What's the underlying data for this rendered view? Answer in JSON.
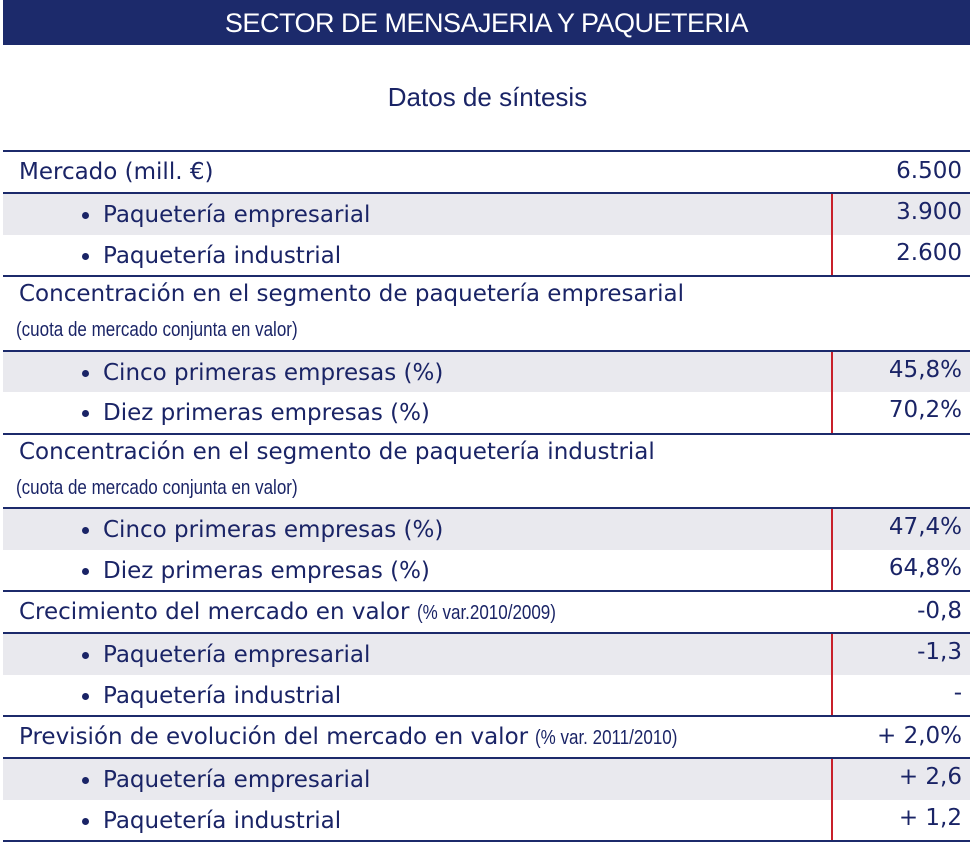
{
  "header": {
    "title": "SECTOR DE MENSAJERIA Y PAQUETERIA",
    "subtitle": "Datos de síntesis"
  },
  "sections": [
    {
      "label": "Mercado (mill. €)",
      "value": "6.500",
      "items": [
        {
          "label": "Paquetería empresarial",
          "value": "3.900"
        },
        {
          "label": "Paquetería industrial",
          "value": "2.600"
        }
      ]
    },
    {
      "label": "Concentración en el segmento de paquetería empresarial",
      "note": "(cuota de mercado conjunta en valor)",
      "items": [
        {
          "label": "Cinco primeras empresas (%)",
          "value": "45,8%"
        },
        {
          "label": "Diez primeras empresas (%)",
          "value": "70,2%"
        }
      ]
    },
    {
      "label": "Concentración en el segmento de paquetería industrial",
      "note": "(cuota de mercado conjunta en valor)",
      "items": [
        {
          "label": "Cinco primeras empresas (%)",
          "value": "47,4%"
        },
        {
          "label": "Diez primeras empresas (%)",
          "value": "64,8%"
        }
      ]
    },
    {
      "label": "Crecimiento del mercado en valor",
      "inline_note": "(% var.2010/2009)",
      "value": "-0,8",
      "items": [
        {
          "label": "Paquetería empresarial",
          "value": "-1,3"
        },
        {
          "label": "Paquetería industrial",
          "value": "-"
        }
      ]
    },
    {
      "label": "Previsión de evolución del mercado en valor",
      "inline_note": "(% var. 2011/2010)",
      "value": "+ 2,0%",
      "items": [
        {
          "label": "Paquetería empresarial",
          "value": "+ 2,6"
        },
        {
          "label": "Paquetería industrial",
          "value": "+ 1,2"
        }
      ]
    }
  ]
}
